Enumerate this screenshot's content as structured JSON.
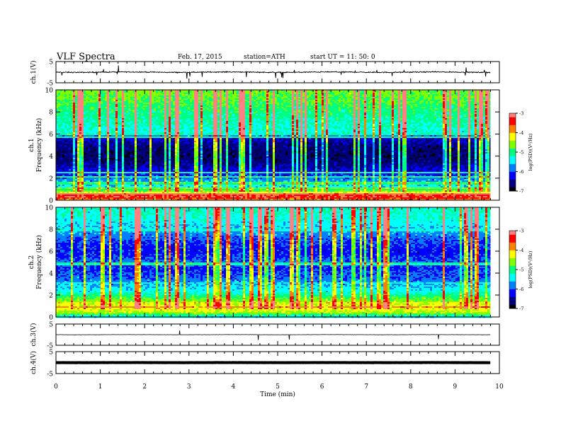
{
  "header": {
    "title": "VLF  Spectra",
    "date": "Feb. 17, 2015",
    "station": "station=ATH",
    "start": "start  UT =   11: 50: 0"
  },
  "chart_data": [
    {
      "type": "line",
      "name": "ch1-waveform",
      "ylabel": "ch.1(V)",
      "yticks": [
        "5",
        "-5"
      ],
      "ylim": [
        -5,
        5
      ],
      "xlim": [
        0,
        10
      ],
      "data_end_min": 9.8,
      "baseline": 0,
      "color": "#000000"
    },
    {
      "type": "heatmap",
      "name": "ch1-spectrogram",
      "ylabel": "ch.1\nFrequency  (kHz)",
      "yticks": [
        "0",
        "2",
        "4",
        "6",
        "8",
        "10"
      ],
      "ylim": [
        0,
        10
      ],
      "xlim": [
        0,
        10
      ],
      "data_end_min": 9.8,
      "colorbar": {
        "label": "log(PSD)(V²/Hz)",
        "ticks": [
          "-3",
          "-4",
          "-5",
          "-6",
          "-7"
        ],
        "range": [
          -7,
          -3
        ]
      },
      "intensity_profile_khz": [
        [
          0.0,
          -4.0
        ],
        [
          0.4,
          -3.2
        ],
        [
          0.8,
          -4.4
        ],
        [
          1.2,
          -5.4
        ],
        [
          1.6,
          -5.6
        ],
        [
          2.0,
          -5.8
        ],
        [
          2.5,
          -6.2
        ],
        [
          3.0,
          -6.4
        ],
        [
          3.5,
          -6.6
        ],
        [
          4.0,
          -6.7
        ],
        [
          5.0,
          -6.6
        ],
        [
          5.8,
          -6.3
        ],
        [
          6.0,
          -5.3
        ],
        [
          7.0,
          -5.2
        ],
        [
          8.0,
          -5.0
        ],
        [
          9.0,
          -4.8
        ],
        [
          10.0,
          -4.7
        ]
      ]
    },
    {
      "type": "heatmap",
      "name": "ch2-spectrogram",
      "ylabel": "ch.2\nFrequency  (kHz)",
      "yticks": [
        "0",
        "2",
        "4",
        "6",
        "8",
        "10"
      ],
      "ylim": [
        0,
        10
      ],
      "xlim": [
        0,
        10
      ],
      "data_end_min": 9.8,
      "colorbar": {
        "label": "log(PSD)(V²/Hz)",
        "ticks": [
          "-3",
          "-4",
          "-5",
          "-6",
          "-7"
        ],
        "range": [
          -7,
          -3
        ]
      },
      "intensity_profile_khz": [
        [
          0.0,
          -5.6
        ],
        [
          0.5,
          -4.4
        ],
        [
          1.0,
          -4.2
        ],
        [
          1.5,
          -4.6
        ],
        [
          2.0,
          -5.0
        ],
        [
          2.5,
          -5.4
        ],
        [
          3.0,
          -5.6
        ],
        [
          3.5,
          -5.9
        ],
        [
          4.0,
          -6.0
        ],
        [
          4.5,
          -6.1
        ],
        [
          5.0,
          -5.9
        ],
        [
          6.0,
          -6.2
        ],
        [
          7.0,
          -6.0
        ],
        [
          8.0,
          -5.6
        ],
        [
          9.0,
          -5.3
        ],
        [
          10.0,
          -5.2
        ]
      ]
    },
    {
      "type": "line",
      "name": "ch3-waveform",
      "ylabel": "ch.3(V)",
      "yticks": [
        "5",
        "-5"
      ],
      "ylim": [
        -5,
        5
      ],
      "xlim": [
        0,
        10
      ],
      "data_end_min": 9.8,
      "baseline": 0,
      "color": "#000000"
    },
    {
      "type": "line",
      "name": "ch4-waveform",
      "ylabel": "ch.4(V)",
      "yticks": [
        "5",
        "-5"
      ],
      "ylim": [
        -5,
        5
      ],
      "xlim": [
        0,
        10
      ],
      "data_end_min": 9.8,
      "baseline": 0,
      "color": "#000000"
    }
  ],
  "xaxis": {
    "label": "Time  (min)",
    "ticks": [
      "0",
      "1",
      "2",
      "3",
      "4",
      "5",
      "6",
      "7",
      "8",
      "9",
      "10"
    ],
    "range": [
      0,
      10
    ]
  },
  "colors": {
    "colormap": [
      "#000000",
      "#00007f",
      "#0000ff",
      "#0080ff",
      "#00ffff",
      "#00ff80",
      "#80ff00",
      "#ffff00",
      "#ff8000",
      "#ff0000",
      "#ff8080"
    ]
  }
}
